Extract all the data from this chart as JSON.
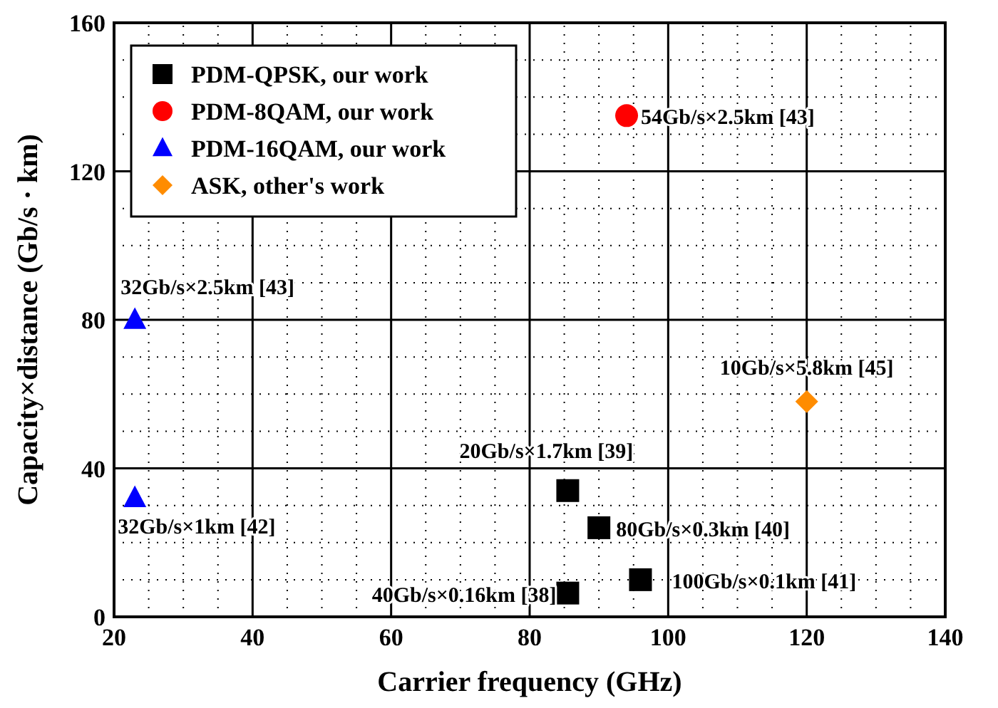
{
  "chart_data": {
    "type": "scatter",
    "xlabel": "Carrier frequency (GHz)",
    "ylabel": "Capacity×distance (Gb/s · km)",
    "xlim": [
      20,
      140
    ],
    "xticks": [
      20,
      40,
      60,
      80,
      100,
      120,
      140
    ],
    "ylim": [
      0,
      160
    ],
    "yticks": [
      0,
      40,
      80,
      120,
      160
    ],
    "grid": true,
    "legend": "top left",
    "series": [
      {
        "name": "PDM-QPSK, our work",
        "color": "#000000",
        "marker": "square",
        "x": [
          85.5,
          90,
          96,
          85.5
        ],
        "values": [
          34,
          24,
          10,
          6.4
        ]
      },
      {
        "name": "PDM-8QAM, our work",
        "color": "#ff0000",
        "marker": "circle",
        "x": [
          94
        ],
        "values": [
          135
        ]
      },
      {
        "name": "PDM-16QAM, our work",
        "color": "#0000ff",
        "marker": "triangle",
        "x": [
          23,
          23
        ],
        "values": [
          80,
          32
        ]
      },
      {
        "name": "ASK, other's work",
        "color": "#ff8c00",
        "marker": "diamond",
        "x": [
          120
        ],
        "values": [
          58
        ]
      }
    ],
    "annotations": [
      {
        "text": "54Gb/s×2.5km [43]",
        "x": 94,
        "y": 135
      },
      {
        "text": "32Gb/s×2.5km [43]",
        "x": 23,
        "y": 80
      },
      {
        "text": "10Gb/s×5.8km [45]",
        "x": 120,
        "y": 58
      },
      {
        "text": "20Gb/s×1.7km [39]",
        "x": 85.5,
        "y": 34
      },
      {
        "text": "32Gb/s×1km [42]",
        "x": 23,
        "y": 32
      },
      {
        "text": "80Gb/s×0.3km [40]",
        "x": 90,
        "y": 24
      },
      {
        "text": "100Gb/s×0.1km [41]",
        "x": 96,
        "y": 10
      },
      {
        "text": "40Gb/s×0.16km [38]",
        "x": 85.5,
        "y": 6.4
      }
    ]
  }
}
